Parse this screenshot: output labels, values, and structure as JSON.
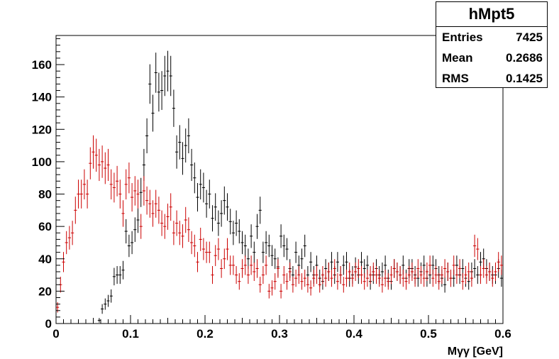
{
  "stats": {
    "title": "hMpt5",
    "rows": [
      {
        "label": "Entries",
        "value": "7425"
      },
      {
        "label": "Mean",
        "value": "0.2686"
      },
      {
        "label": "RMS",
        "value": "0.1425"
      }
    ]
  },
  "chart_data": {
    "type": "scatter",
    "style": "histogram with error bars",
    "title": "",
    "xlabel": "Mγγ [GeV]",
    "ylabel": "",
    "xlim": [
      0,
      0.6
    ],
    "ylim": [
      0,
      178
    ],
    "x_ticks": [
      0,
      0.1,
      0.2,
      0.3,
      0.4,
      0.5,
      0.6
    ],
    "x_tick_labels": [
      "0",
      "0.1",
      "0.2",
      "0.3",
      "0.4",
      "0.5",
      "0.6"
    ],
    "y_ticks": [
      0,
      20,
      40,
      60,
      80,
      100,
      120,
      140,
      160
    ],
    "y_tick_labels": [
      "0",
      "20",
      "40",
      "60",
      "80",
      "100",
      "120",
      "140",
      "160"
    ],
    "grid": false,
    "legend": "none",
    "bin_width": 0.004,
    "series": [
      {
        "color": "#000000",
        "x": [
          0.058,
          0.062,
          0.066,
          0.07,
          0.074,
          0.078,
          0.082,
          0.086,
          0.09,
          0.094,
          0.098,
          0.102,
          0.106,
          0.11,
          0.114,
          0.118,
          0.122,
          0.126,
          0.13,
          0.134,
          0.138,
          0.142,
          0.146,
          0.15,
          0.154,
          0.158,
          0.162,
          0.166,
          0.17,
          0.174,
          0.178,
          0.182,
          0.186,
          0.19,
          0.194,
          0.198,
          0.202,
          0.206,
          0.21,
          0.214,
          0.218,
          0.222,
          0.226,
          0.23,
          0.234,
          0.238,
          0.242,
          0.246,
          0.25,
          0.254,
          0.258,
          0.262,
          0.266,
          0.27,
          0.274,
          0.278,
          0.282,
          0.286,
          0.29,
          0.294,
          0.298,
          0.302,
          0.306,
          0.31,
          0.314,
          0.318,
          0.322,
          0.326,
          0.33,
          0.334,
          0.338,
          0.342,
          0.346,
          0.35,
          0.354,
          0.358,
          0.362,
          0.366,
          0.37,
          0.374,
          0.378,
          0.382,
          0.386,
          0.39,
          0.394,
          0.398,
          0.402,
          0.406,
          0.41,
          0.414,
          0.418,
          0.422,
          0.426,
          0.43,
          0.434,
          0.438,
          0.442,
          0.446,
          0.45,
          0.454,
          0.458,
          0.462,
          0.466,
          0.47,
          0.474,
          0.478,
          0.482,
          0.486,
          0.49,
          0.494,
          0.498,
          0.502,
          0.506,
          0.51,
          0.514,
          0.518,
          0.522,
          0.526,
          0.53,
          0.534,
          0.538,
          0.542,
          0.546,
          0.55,
          0.554,
          0.558,
          0.562,
          0.566,
          0.57,
          0.574,
          0.578,
          0.582,
          0.586,
          0.59,
          0.594,
          0.598
        ],
        "y": [
          2,
          9,
          12,
          14,
          17,
          29,
          30,
          30,
          33,
          57,
          48,
          50,
          58,
          64,
          81,
          98,
          116,
          148,
          130,
          155,
          143,
          144,
          153,
          156,
          153,
          133,
          106,
          112,
          102,
          110,
          116,
          98,
          90,
          78,
          86,
          84,
          74,
          80,
          65,
          72,
          62,
          68,
          76,
          72,
          63,
          56,
          62,
          57,
          50,
          48,
          40,
          54,
          44,
          60,
          70,
          44,
          50,
          48,
          42,
          40,
          35,
          54,
          48,
          46,
          34,
          30,
          44,
          36,
          40,
          48,
          30,
          38,
          30,
          36,
          28,
          26,
          34,
          32,
          38,
          30,
          38,
          30,
          36,
          38,
          28,
          30,
          35,
          30,
          38,
          34,
          36,
          26,
          30,
          34,
          30,
          32,
          36,
          28,
          26,
          34,
          32,
          30,
          36,
          28,
          34,
          34,
          30,
          28,
          32,
          36,
          28,
          30,
          36,
          34,
          30,
          28,
          24,
          32,
          28,
          28,
          36,
          30,
          34,
          28,
          26,
          32,
          34,
          30,
          38,
          40,
          34,
          32,
          30,
          30,
          34,
          28
        ],
        "yerr": [
          1.4,
          3,
          3.5,
          3.7,
          4.1,
          5.4,
          5.5,
          5.5,
          5.7,
          7.5,
          6.9,
          7.1,
          7.6,
          8,
          9,
          9.9,
          10.8,
          12.2,
          11.4,
          12.4,
          12,
          12,
          12.4,
          12.5,
          12.4,
          11.5,
          10.3,
          10.6,
          10.1,
          10.5,
          10.8,
          9.9,
          9.5,
          8.8,
          9.3,
          9.2,
          8.6,
          8.9,
          8.1,
          8.5,
          7.9,
          8.2,
          8.7,
          8.5,
          7.9,
          7.5,
          7.9,
          7.5,
          7.1,
          6.9,
          6.3,
          7.3,
          6.6,
          7.7,
          8.4,
          6.6,
          7.1,
          6.9,
          6.5,
          6.3,
          5.9,
          7.3,
          6.9,
          6.8,
          5.8,
          5.5,
          6.6,
          6,
          6.3,
          6.9,
          5.5,
          6.2,
          5.5,
          6,
          5.3,
          5.1,
          5.8,
          5.7,
          6.2,
          5.5,
          6.2,
          5.5,
          6,
          6.2,
          5.3,
          5.5,
          5.9,
          5.5,
          6.2,
          5.8,
          6,
          5.1,
          5.5,
          5.8,
          5.5,
          5.7,
          6,
          5.3,
          5.1,
          5.8,
          5.7,
          5.5,
          6,
          5.3,
          5.8,
          5.8,
          5.5,
          5.3,
          5.7,
          6,
          5.3,
          5.5,
          6,
          5.8,
          5.5,
          5.3,
          4.9,
          5.7,
          5.3,
          5.3,
          6,
          5.5,
          5.8,
          5.3,
          5.1,
          5.7,
          5.8,
          5.5,
          6.2,
          6.3,
          5.8,
          5.7,
          5.5,
          5.5,
          5.8,
          5.3
        ]
      },
      {
        "color": "#cc0000",
        "x": [
          0.002,
          0.006,
          0.01,
          0.014,
          0.018,
          0.022,
          0.026,
          0.03,
          0.034,
          0.038,
          0.042,
          0.046,
          0.05,
          0.054,
          0.058,
          0.062,
          0.066,
          0.07,
          0.074,
          0.078,
          0.082,
          0.086,
          0.09,
          0.094,
          0.098,
          0.102,
          0.106,
          0.11,
          0.114,
          0.118,
          0.122,
          0.126,
          0.13,
          0.134,
          0.138,
          0.142,
          0.146,
          0.15,
          0.154,
          0.158,
          0.162,
          0.166,
          0.17,
          0.174,
          0.178,
          0.182,
          0.186,
          0.19,
          0.194,
          0.198,
          0.202,
          0.206,
          0.21,
          0.214,
          0.218,
          0.222,
          0.226,
          0.23,
          0.234,
          0.238,
          0.242,
          0.246,
          0.25,
          0.254,
          0.258,
          0.262,
          0.266,
          0.27,
          0.274,
          0.278,
          0.282,
          0.286,
          0.29,
          0.294,
          0.298,
          0.302,
          0.306,
          0.31,
          0.314,
          0.318,
          0.322,
          0.326,
          0.33,
          0.334,
          0.338,
          0.342,
          0.346,
          0.35,
          0.354,
          0.358,
          0.362,
          0.366,
          0.37,
          0.374,
          0.378,
          0.382,
          0.386,
          0.39,
          0.394,
          0.398,
          0.402,
          0.406,
          0.41,
          0.414,
          0.418,
          0.422,
          0.426,
          0.43,
          0.434,
          0.438,
          0.442,
          0.446,
          0.45,
          0.454,
          0.458,
          0.462,
          0.466,
          0.47,
          0.474,
          0.478,
          0.482,
          0.486,
          0.49,
          0.494,
          0.498,
          0.502,
          0.506,
          0.51,
          0.514,
          0.518,
          0.522,
          0.526,
          0.53,
          0.534,
          0.538,
          0.542,
          0.546,
          0.55,
          0.554,
          0.558,
          0.562,
          0.566,
          0.57,
          0.574,
          0.578,
          0.582,
          0.586,
          0.59,
          0.594,
          0.598
        ],
        "y": [
          10,
          24,
          38,
          50,
          53,
          56,
          70,
          80,
          80,
          86,
          80,
          99,
          106,
          104,
          98,
          100,
          96,
          98,
          86,
          84,
          88,
          80,
          68,
          86,
          90,
          78,
          82,
          80,
          60,
          82,
          76,
          74,
          68,
          74,
          70,
          62,
          60,
          66,
          72,
          56,
          62,
          56,
          54,
          64,
          58,
          50,
          48,
          38,
          52,
          46,
          44,
          44,
          30,
          42,
          46,
          34,
          40,
          46,
          36,
          36,
          30,
          26,
          34,
          36,
          30,
          36,
          32,
          34,
          24,
          30,
          36,
          20,
          22,
          26,
          34,
          20,
          30,
          26,
          32,
          24,
          28,
          30,
          26,
          28,
          24,
          22,
          28,
          30,
          24,
          30,
          28,
          32,
          28,
          34,
          26,
          30,
          24,
          28,
          32,
          28,
          32,
          34,
          30,
          26,
          28,
          30,
          32,
          30,
          28,
          24,
          28,
          26,
          30,
          34,
          32,
          30,
          28,
          26,
          30,
          32,
          28,
          34,
          30,
          28,
          32,
          36,
          28,
          30,
          26,
          30,
          34,
          32,
          28,
          36,
          30,
          34,
          26,
          30,
          32,
          28,
          48,
          46,
          30,
          34,
          30,
          32,
          28,
          32,
          38,
          36
        ],
        "yerr": [
          3.2,
          4.9,
          6.2,
          7.1,
          7.3,
          7.5,
          8.4,
          8.9,
          8.9,
          9.3,
          8.9,
          9.9,
          10.3,
          10.2,
          9.9,
          10,
          9.8,
          9.9,
          9.3,
          9.2,
          9.4,
          8.9,
          8.2,
          9.3,
          9.5,
          8.8,
          9.1,
          8.9,
          7.7,
          9.1,
          8.7,
          8.6,
          8.2,
          8.6,
          8.4,
          7.9,
          7.7,
          8.1,
          8.5,
          7.5,
          7.9,
          7.5,
          7.3,
          8,
          7.6,
          7.1,
          6.9,
          6.2,
          7.2,
          6.8,
          6.6,
          6.6,
          5.5,
          6.5,
          6.8,
          5.8,
          6.3,
          6.8,
          6,
          6,
          5.5,
          5.1,
          5.8,
          6,
          5.5,
          6,
          5.7,
          5.8,
          4.9,
          5.5,
          6,
          4.5,
          4.7,
          5.1,
          5.8,
          4.5,
          5.5,
          5.1,
          5.7,
          4.9,
          5.3,
          5.5,
          5.1,
          5.3,
          4.9,
          4.7,
          5.3,
          5.5,
          4.9,
          5.5,
          5.3,
          5.7,
          5.3,
          5.8,
          5.1,
          5.5,
          4.9,
          5.3,
          5.7,
          5.3,
          5.7,
          5.8,
          5.5,
          5.1,
          5.3,
          5.5,
          5.7,
          5.5,
          5.3,
          4.9,
          5.3,
          5.1,
          5.5,
          5.8,
          5.7,
          5.5,
          5.3,
          5.1,
          5.5,
          5.7,
          5.3,
          5.8,
          5.5,
          5.3,
          5.7,
          6,
          5.3,
          5.5,
          5.1,
          5.5,
          5.8,
          5.7,
          5.3,
          6,
          5.5,
          5.8,
          5.1,
          5.5,
          5.7,
          5.3,
          6.9,
          6.8,
          5.5,
          5.8,
          5.5,
          5.7,
          5.3,
          5.7,
          6.2,
          6
        ]
      }
    ]
  }
}
